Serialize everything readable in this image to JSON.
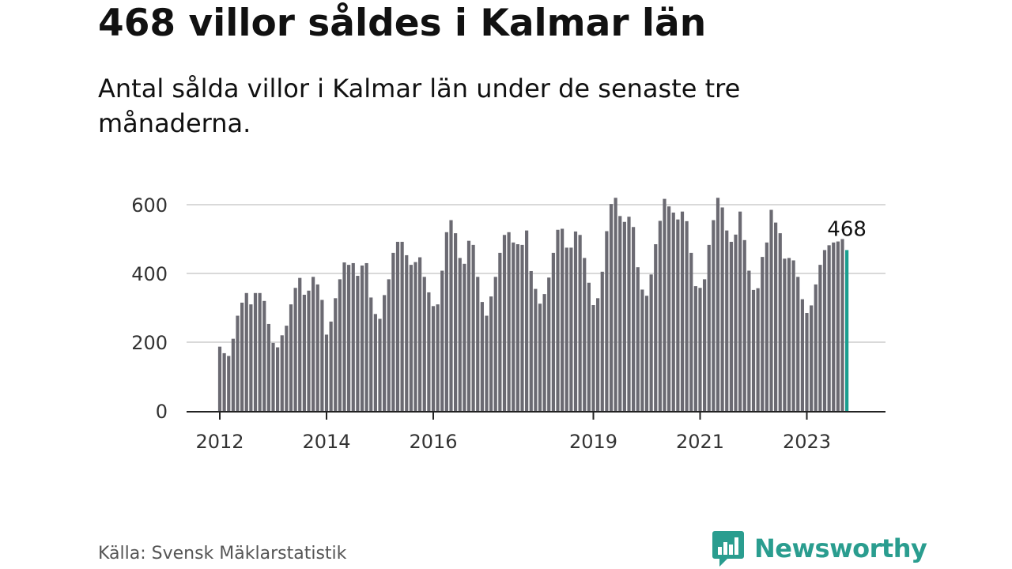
{
  "title": "468 villor såldes i Kalmar län",
  "subtitle": "Antal sålda villor i Kalmar län under de senaste tre månaderna.",
  "source": "Källa: Svensk Mäklarstatistik",
  "brand": "Newsworthy",
  "colors": {
    "bar": "#6b6a72",
    "highlight": "#1a9e8f",
    "grid": "#d9d9d9",
    "axis": "#222222",
    "brand": "#2a9d8f"
  },
  "chart_data": {
    "type": "bar",
    "title": "",
    "xlabel": "",
    "ylabel": "",
    "ylim": [
      0,
      600
    ],
    "y_ticks": [
      0,
      200,
      400,
      600
    ],
    "x_ticks": [
      {
        "label": "2012",
        "year": 2012
      },
      {
        "label": "2014",
        "year": 2014
      },
      {
        "label": "2016",
        "year": 2016
      },
      {
        "label": "2019",
        "year": 2019
      },
      {
        "label": "2021",
        "year": 2021
      },
      {
        "label": "2023",
        "year": 2023
      }
    ],
    "start": "2012-01",
    "frequency": "monthly, rolling three-month total",
    "last_value_label": "468",
    "values": [
      187,
      168,
      160,
      210,
      277,
      315,
      343,
      310,
      343,
      343,
      320,
      253,
      198,
      185,
      220,
      248,
      310,
      358,
      387,
      338,
      350,
      390,
      368,
      323,
      222,
      260,
      328,
      383,
      432,
      425,
      430,
      393,
      423,
      430,
      330,
      282,
      268,
      337,
      383,
      460,
      492,
      492,
      453,
      425,
      433,
      447,
      390,
      345,
      305,
      310,
      408,
      520,
      555,
      517,
      445,
      428,
      495,
      483,
      390,
      317,
      277,
      333,
      390,
      460,
      512,
      520,
      490,
      485,
      483,
      525,
      407,
      355,
      312,
      340,
      388,
      460,
      527,
      530,
      475,
      475,
      522,
      512,
      445,
      373,
      308,
      328,
      405,
      523,
      602,
      620,
      567,
      550,
      565,
      535,
      418,
      353,
      335,
      397,
      485,
      553,
      617,
      595,
      577,
      557,
      580,
      552,
      460,
      363,
      358,
      383,
      483,
      555,
      620,
      592,
      525,
      492,
      513,
      580,
      497,
      408,
      352,
      357,
      448,
      490,
      585,
      548,
      517,
      443,
      445,
      438,
      390,
      325,
      285,
      307,
      368,
      425,
      468,
      482,
      490,
      493,
      500,
      468
    ]
  }
}
